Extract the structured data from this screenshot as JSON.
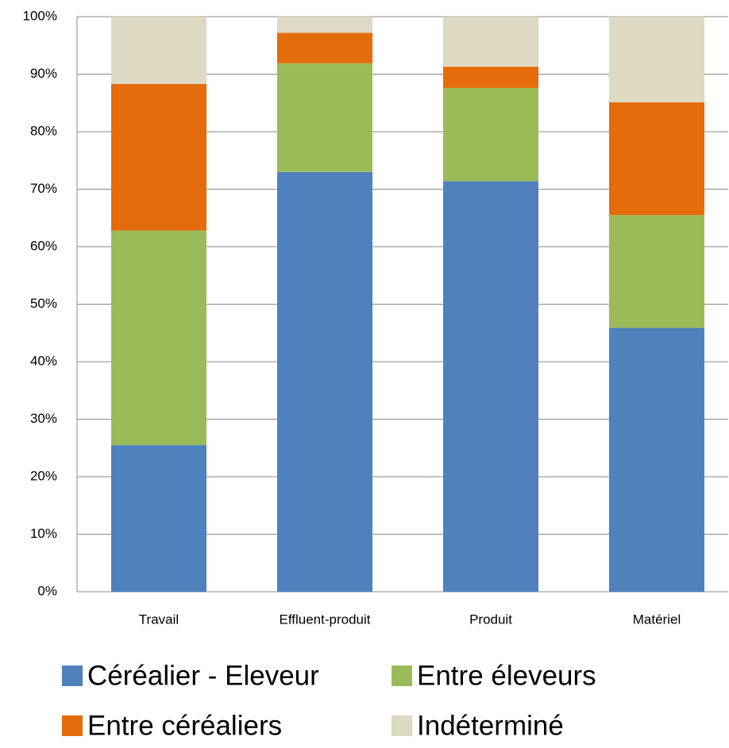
{
  "chart_data": {
    "type": "stacked_bar",
    "categories": [
      "Travail",
      "Effluent-produit",
      "Produit",
      "Matériel"
    ],
    "series": [
      {
        "name": "Céréalier - Eleveur",
        "color": "#4f81bd",
        "values": [
          25.5,
          73.0,
          71.4,
          45.9
        ]
      },
      {
        "name": "Entre éleveurs",
        "color": "#9bbb59",
        "values": [
          37.3,
          18.9,
          16.2,
          19.6
        ]
      },
      {
        "name": "Entre céréaliers",
        "color": "#e46c0a",
        "values": [
          25.5,
          5.3,
          3.7,
          19.6
        ]
      },
      {
        "name": "Indéterminé",
        "color": "#ddd9c3",
        "values": [
          11.7,
          2.8,
          8.7,
          14.9
        ]
      }
    ],
    "ylim": [
      0,
      100
    ],
    "yticks": [
      {
        "value": 0,
        "label": "0%"
      },
      {
        "value": 10,
        "label": "10%"
      },
      {
        "value": 20,
        "label": "20%"
      },
      {
        "value": 30,
        "label": "30%"
      },
      {
        "value": 40,
        "label": "40%"
      },
      {
        "value": 50,
        "label": "50%"
      },
      {
        "value": 60,
        "label": "60%"
      },
      {
        "value": 70,
        "label": "70%"
      },
      {
        "value": 80,
        "label": "80%"
      },
      {
        "value": 90,
        "label": "90%"
      },
      {
        "value": 100,
        "label": "100%"
      }
    ],
    "grid": true
  }
}
